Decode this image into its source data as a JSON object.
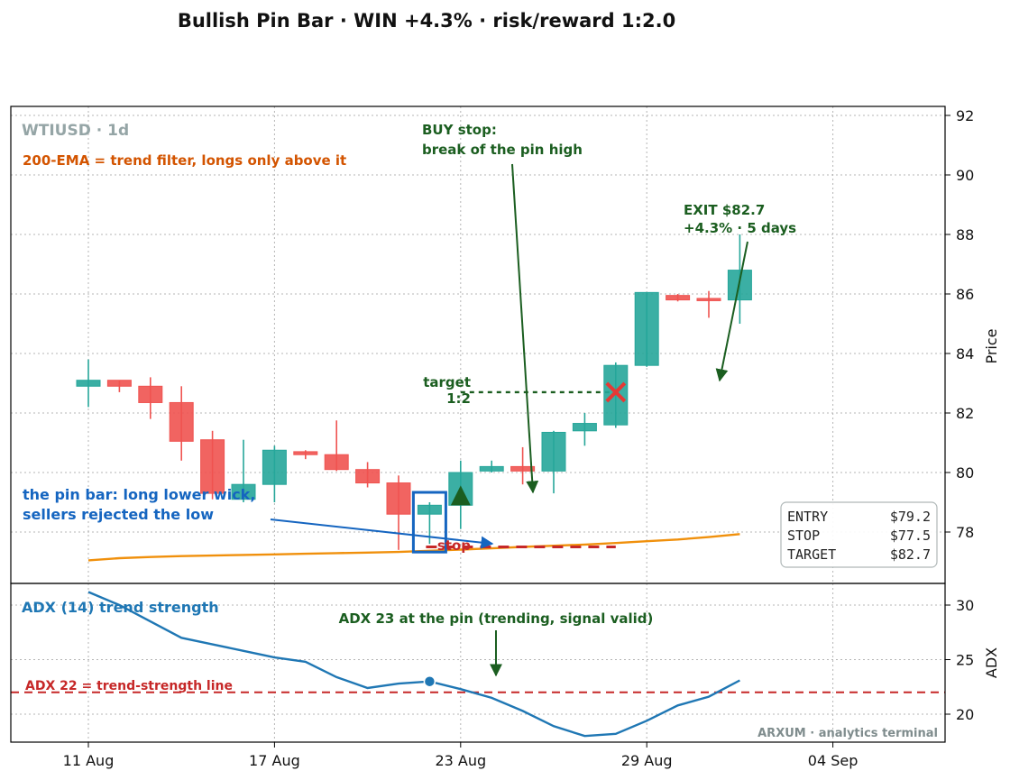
{
  "title": "Bullish Pin Bar · WIN +4.3% · risk/reward 1:2.0",
  "colors": {
    "up": "#26a69a",
    "down": "#ef5350",
    "ema": "#f0900c",
    "adx": "#1f77b4",
    "stop": "#c62828",
    "buy": "#1b5e20",
    "pin_box": "#1565c0",
    "ema_note": "#d35400",
    "pin_note": "#1565c0",
    "symbol": "#95a5a6",
    "watermark": "#7f8c8d",
    "exit_marker": "#e53935"
  },
  "chart_data": [
    {
      "type": "candlestick",
      "symbol_label": "WTIUSD · 1d",
      "ylabel": "Price",
      "ylim": [
        76.3,
        92.2
      ],
      "y_ticks": [
        "78",
        "80",
        "82",
        "84",
        "86",
        "88",
        "90",
        "92"
      ],
      "x_ticks": [
        "11 Aug",
        "17 Aug",
        "23 Aug",
        "29 Aug",
        "04 Sep"
      ],
      "x_tick_days": [
        0,
        6,
        12,
        18,
        24
      ],
      "grid": true,
      "candles": [
        {
          "day": 0,
          "open": 82.9,
          "high": 83.8,
          "low": 82.2,
          "close": 83.1
        },
        {
          "day": 1,
          "open": 83.1,
          "high": 83.1,
          "low": 82.7,
          "close": 82.9
        },
        {
          "day": 2,
          "open": 82.9,
          "high": 83.2,
          "low": 81.8,
          "close": 82.35
        },
        {
          "day": 3,
          "open": 82.35,
          "high": 82.9,
          "low": 80.4,
          "close": 81.05
        },
        {
          "day": 4,
          "open": 81.1,
          "high": 81.4,
          "low": 79.1,
          "close": 79.3
        },
        {
          "day": 5,
          "open": 79.1,
          "high": 81.1,
          "low": 79.0,
          "close": 79.6
        },
        {
          "day": 6,
          "open": 79.6,
          "high": 80.9,
          "low": 79.0,
          "close": 80.75
        },
        {
          "day": 7,
          "open": 80.7,
          "high": 80.75,
          "low": 80.45,
          "close": 80.6
        },
        {
          "day": 8,
          "open": 80.6,
          "high": 81.75,
          "low": 80.05,
          "close": 80.1
        },
        {
          "day": 9,
          "open": 80.1,
          "high": 80.35,
          "low": 79.5,
          "close": 79.65
        },
        {
          "day": 10,
          "open": 79.65,
          "high": 79.9,
          "low": 77.4,
          "close": 78.6
        },
        {
          "day": 11,
          "open": 78.6,
          "high": 79.0,
          "low": 77.6,
          "close": 78.9
        },
        {
          "day": 12,
          "open": 78.9,
          "high": 80.4,
          "low": 78.1,
          "close": 80.0
        },
        {
          "day": 13,
          "open": 80.05,
          "high": 80.4,
          "low": 80.0,
          "close": 80.2
        },
        {
          "day": 14,
          "open": 80.2,
          "high": 80.85,
          "low": 79.6,
          "close": 80.05
        },
        {
          "day": 15,
          "open": 80.05,
          "high": 81.4,
          "low": 79.3,
          "close": 81.35
        },
        {
          "day": 16,
          "open": 81.4,
          "high": 82.0,
          "low": 80.9,
          "close": 81.65
        },
        {
          "day": 17,
          "open": 81.6,
          "high": 83.7,
          "low": 81.5,
          "close": 83.6
        },
        {
          "day": 18,
          "open": 83.6,
          "high": 86.05,
          "low": 83.55,
          "close": 86.05
        },
        {
          "day": 19,
          "open": 85.95,
          "high": 86.0,
          "low": 85.75,
          "close": 85.8
        },
        {
          "day": 20,
          "open": 85.85,
          "high": 86.1,
          "low": 85.2,
          "close": 85.8
        },
        {
          "day": 21,
          "open": 85.8,
          "high": 88.0,
          "low": 85.0,
          "close": 86.8
        }
      ],
      "ema_200": {
        "start_day": 0,
        "end_day": 21,
        "values": [
          77.05,
          77.12,
          77.16,
          77.19,
          77.21,
          77.23,
          77.25,
          77.27,
          77.29,
          77.31,
          77.33,
          77.37,
          77.41,
          77.45,
          77.5,
          77.54,
          77.58,
          77.63,
          77.69,
          77.75,
          77.83,
          77.93
        ]
      },
      "trade": {
        "pin_day": 11,
        "entry_day": 12,
        "entry_price": 79.2,
        "stop_price": 77.5,
        "target_price": 82.7,
        "exit_day": 17,
        "exit_price": 82.7
      },
      "annotations": {
        "ema_note": "200-EMA = trend filter, longs only above it",
        "buy_note": [
          "BUY stop:",
          "break of the pin high"
        ],
        "exit_note": [
          "EXIT $82.7",
          "+4.3%  ·  5 days"
        ],
        "target_label": [
          "target",
          "1:2"
        ],
        "stop_label": "stop",
        "pin_note": [
          "the pin bar: long lower wick,",
          "sellers rejected the low"
        ]
      },
      "summary_box": [
        {
          "label": "ENTRY",
          "value": "$79.2"
        },
        {
          "label": "STOP",
          "value": "$77.5"
        },
        {
          "label": "TARGET",
          "value": "$82.7"
        }
      ]
    },
    {
      "type": "line",
      "name": "ADX (14) trend strength",
      "ylabel": "ADX",
      "ylim": [
        17.5,
        32.2
      ],
      "y_ticks": [
        "20",
        "25",
        "30"
      ],
      "x": [
        0,
        1,
        3,
        4,
        5,
        6,
        7,
        8,
        9,
        10,
        11,
        12,
        13,
        14,
        15,
        16,
        17,
        18,
        19,
        20,
        21
      ],
      "values": [
        31.2,
        30.0,
        27.0,
        26.4,
        25.8,
        25.2,
        24.8,
        23.4,
        22.4,
        22.8,
        23.0,
        22.3,
        21.5,
        20.3,
        18.9,
        18.0,
        18.2,
        19.4,
        20.8,
        21.6,
        23.1
      ],
      "threshold": 22,
      "threshold_label": "ADX 22 = trend-strength line",
      "marker_day": 11,
      "marker_value": 23,
      "marker_note": "ADX 23 at the pin (trending, signal valid)",
      "watermark": "ARXUM · analytics terminal"
    }
  ]
}
